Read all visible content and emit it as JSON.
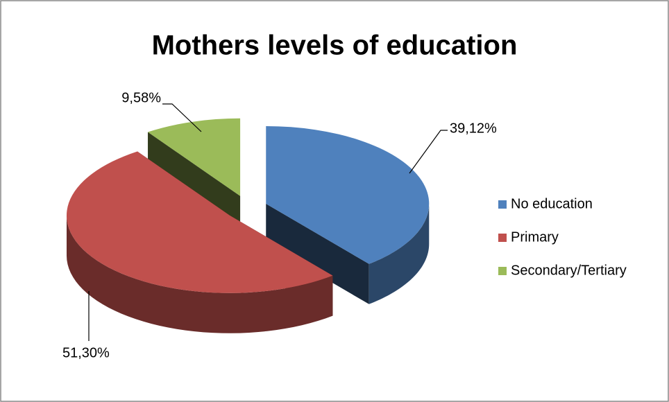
{
  "chart_data": {
    "type": "pie3d",
    "title": "Mothers levels of education",
    "categories": [
      "No education",
      "Primary",
      "Secondary/Tertiary"
    ],
    "values": [
      39.12,
      51.3,
      9.58
    ],
    "value_labels": [
      "39,12%",
      "51,30%",
      "9,58%"
    ],
    "colors": [
      "#4f81bd",
      "#c0504d",
      "#9bbb59"
    ],
    "legend": "right"
  }
}
